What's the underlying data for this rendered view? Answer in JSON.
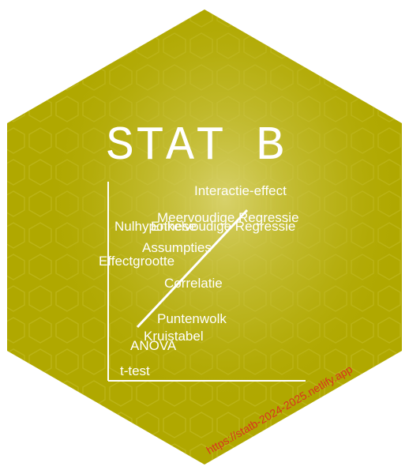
{
  "logo": {
    "title": "STAT  B",
    "url": "https://statb-2024-2025.netlify.app",
    "terms": [
      "Interactie-effect",
      "Meervoudige Regressie",
      "Nulhypothese",
      "Enkelvoudige Regressie",
      "Assumpties",
      "Effectgrootte",
      "Correlatie",
      "Puntenwolk",
      "Kruistabel",
      "ANOVA",
      "t-test"
    ]
  },
  "colors": {
    "hex_fill": "#b0a800",
    "hex_glow": "#d6d070",
    "text": "#ffffff",
    "url": "#d9331f"
  }
}
